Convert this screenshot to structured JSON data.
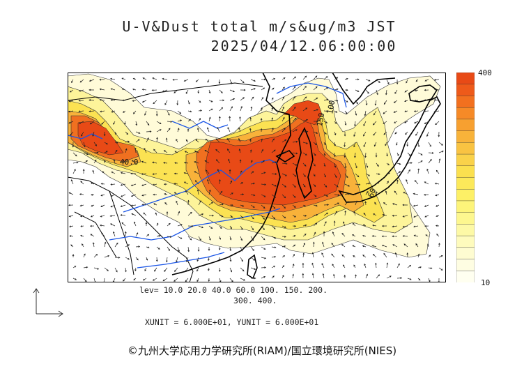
{
  "header": {
    "title": "U-V&Dust total m/s&ug/m3 JST",
    "datetime": "2025/04/12.06:00:00"
  },
  "map": {
    "region": "East Asia",
    "contour_labels": [
      "40.0",
      "150",
      "100",
      "60"
    ],
    "colors": {
      "coast": "#000000",
      "rivers": "#1a55e6",
      "borders": "#000000"
    }
  },
  "colorbar": {
    "max_label": "400",
    "min_label": "10",
    "colors": [
      "#e84a16",
      "#ee5a1a",
      "#f2701f",
      "#f68a27",
      "#f7a030",
      "#f8b33a",
      "#f9c342",
      "#fad24a",
      "#fbe04f",
      "#fce95a",
      "#fdf066",
      "#fdf47a",
      "#fdf78f",
      "#fdf9a6",
      "#fefbbd",
      "#fefcd1",
      "#fefde2",
      "#fffff0"
    ]
  },
  "levels": {
    "line1": "lev= 10.0 20.0 40.0 60.0 100. 150. 200.",
    "line2": "300. 400."
  },
  "units": "XUNIT = 6.000E+01, YUNIT = 6.000E+01",
  "credit": "©九州大学応用力学研究所(RIAM)/国立環境研究所(NIES)"
}
